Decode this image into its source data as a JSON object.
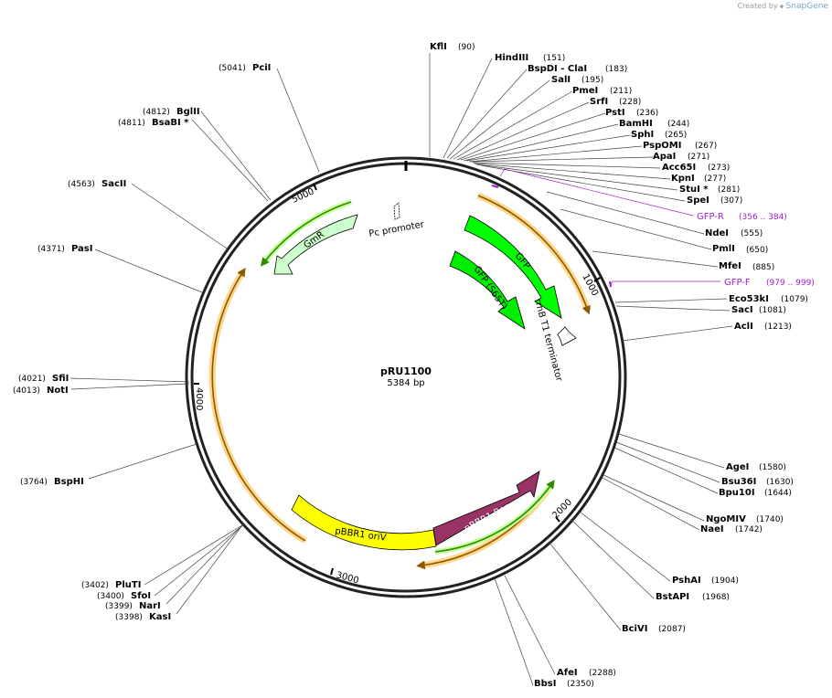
{
  "credit": {
    "prefix": "Created by",
    "brand": "SnapGene"
  },
  "plasmid": {
    "name": "pRU1100",
    "length_label": "5384 bp",
    "length": 5384
  },
  "ticks": [
    "1000",
    "2000",
    "3000",
    "4000",
    "5000"
  ],
  "features": [
    {
      "id": "gmr",
      "label": "GmR",
      "color": "#ccffcc"
    },
    {
      "id": "gfp",
      "label": "GFP",
      "color": "#00ff00"
    },
    {
      "id": "gfp-s65t",
      "label": "GFP (S65T)",
      "color": "#00ee00"
    },
    {
      "id": "pbbr1-rep",
      "label": "pBBR1 Rep",
      "color": "#993366"
    },
    {
      "id": "pbbr1-oriv",
      "label": "pBBR1 oriV",
      "color": "#ffff00"
    },
    {
      "id": "pc-promoter",
      "label": "Pc promoter",
      "color": "#ffffff"
    },
    {
      "id": "rrnb",
      "label": "rrnB T1 terminator",
      "color": "#ffffff"
    }
  ],
  "sites": [
    {
      "id": "kfli",
      "name": "KflI",
      "pos": "(90)"
    },
    {
      "id": "hindiii",
      "name": "HindIII",
      "pos": "(151)"
    },
    {
      "id": "bspdi",
      "name": "BspDI  - ClaI",
      "pos": "(183)"
    },
    {
      "id": "sali",
      "name": "SalI",
      "pos": "(195)"
    },
    {
      "id": "pmei",
      "name": "PmeI",
      "pos": "(211)"
    },
    {
      "id": "srfi",
      "name": "SrfI",
      "pos": "(228)"
    },
    {
      "id": "psti",
      "name": "PstI",
      "pos": "(236)"
    },
    {
      "id": "bamhi",
      "name": "BamHI",
      "pos": "(244)"
    },
    {
      "id": "sphi",
      "name": "SphI",
      "pos": "(265)"
    },
    {
      "id": "pspomi",
      "name": "PspOMI",
      "pos": "(267)"
    },
    {
      "id": "apai",
      "name": "ApaI",
      "pos": "(271)"
    },
    {
      "id": "acc65i",
      "name": "Acc65I",
      "pos": "(273)"
    },
    {
      "id": "kpni",
      "name": "KpnI",
      "pos": "(277)"
    },
    {
      "id": "stui",
      "name": "StuI *",
      "pos": "(281)"
    },
    {
      "id": "spei",
      "name": "SpeI",
      "pos": "(307)"
    },
    {
      "id": "ndei",
      "name": "NdeI",
      "pos": "(555)"
    },
    {
      "id": "pmli",
      "name": "PmlI",
      "pos": "(650)"
    },
    {
      "id": "mfei",
      "name": "MfeI",
      "pos": "(885)"
    },
    {
      "id": "eco53ki",
      "name": "Eco53kI",
      "pos": "(1079)"
    },
    {
      "id": "saci",
      "name": "SacI",
      "pos": "(1081)"
    },
    {
      "id": "acli",
      "name": "AclI",
      "pos": "(1213)"
    },
    {
      "id": "agei",
      "name": "AgeI",
      "pos": "(1580)"
    },
    {
      "id": "bsu36i",
      "name": "Bsu36I",
      "pos": "(1630)"
    },
    {
      "id": "bpu10i",
      "name": "Bpu10I",
      "pos": "(1644)"
    },
    {
      "id": "ngomiv",
      "name": "NgoMIV",
      "pos": "(1740)"
    },
    {
      "id": "naei",
      "name": "NaeI",
      "pos": "(1742)"
    },
    {
      "id": "pshai",
      "name": "PshAI",
      "pos": "(1904)"
    },
    {
      "id": "bstapi",
      "name": "BstAPI",
      "pos": "(1968)"
    },
    {
      "id": "bcivi",
      "name": "BciVI",
      "pos": "(2087)"
    },
    {
      "id": "afei",
      "name": "AfeI",
      "pos": "(2288)"
    },
    {
      "id": "bbsi",
      "name": "BbsI",
      "pos": "(2350)"
    },
    {
      "id": "kasi",
      "name": "KasI",
      "pos": "(3398)"
    },
    {
      "id": "nari",
      "name": "NarI",
      "pos": "(3399)"
    },
    {
      "id": "sfoi",
      "name": "SfoI",
      "pos": "(3400)"
    },
    {
      "id": "pluti",
      "name": "PluTI",
      "pos": "(3402)"
    },
    {
      "id": "bsphi",
      "name": "BspHI",
      "pos": "(3764)"
    },
    {
      "id": "noti",
      "name": "NotI",
      "pos": "(4013)"
    },
    {
      "id": "sfii",
      "name": "SfiI",
      "pos": "(4021)"
    },
    {
      "id": "pasi",
      "name": "PasI",
      "pos": "(4371)"
    },
    {
      "id": "sacii",
      "name": "SacII",
      "pos": "(4563)"
    },
    {
      "id": "bsabi",
      "name": "BsaBI *",
      "pos": "(4811)"
    },
    {
      "id": "bglii",
      "name": "BglII",
      "pos": "(4812)"
    },
    {
      "id": "pcii",
      "name": "PciI",
      "pos": "(5041)"
    }
  ],
  "primers": [
    {
      "id": "gfp-r",
      "name": "GFP-R",
      "pos": "(356 .. 384)"
    },
    {
      "id": "gfp-f",
      "name": "GFP-F",
      "pos": "(979 .. 999)"
    }
  ],
  "colors": {
    "backbone": "#222222",
    "primer": "#a020c8",
    "orf_fill": "#f2a600",
    "orf_halo": "#ffd58a"
  }
}
